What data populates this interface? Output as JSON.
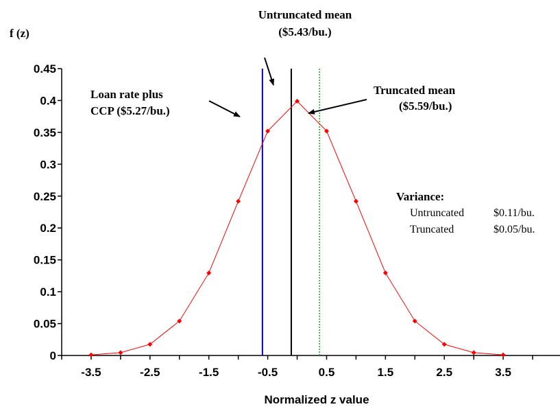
{
  "chart_data": {
    "type": "line",
    "xlabel": "Normalized z value",
    "ylabel": "f (z)",
    "ylim": [
      0,
      0.45
    ],
    "yticks": [
      "0",
      "0.05",
      "0.1",
      "0.15",
      "0.2",
      "0.25",
      "0.3",
      "0.35",
      "0.4",
      "0.45"
    ],
    "xticks": [
      "-3.5",
      "-2.5",
      "-1.5",
      "-0.5",
      "0.5",
      "1.5",
      "2.5",
      "3.5"
    ],
    "series": [
      {
        "color": "#ff0000",
        "x": [
          -3.5,
          -3.0,
          -2.5,
          -2.0,
          -1.5,
          -1.0,
          -0.5,
          0.0,
          0.5,
          1.0,
          1.5,
          2.0,
          2.5,
          3.0,
          3.5
        ],
        "y": [
          0.0009,
          0.0044,
          0.0175,
          0.054,
          0.1295,
          0.242,
          0.3521,
          0.3989,
          0.3521,
          0.242,
          0.1295,
          0.054,
          0.0175,
          0.0044,
          0.0009
        ]
      }
    ],
    "reference_lines": [
      {
        "x": -0.59,
        "color": "#0000cc",
        "style": "solid",
        "label": [
          "Loan rate plus",
          "CCP  ($5.27/bu.)"
        ]
      },
      {
        "x": -0.1,
        "color": "#000000",
        "style": "solid",
        "label": [
          "Untruncated mean",
          "($5.43/bu.)"
        ]
      },
      {
        "x": 0.38,
        "color": "#00bb00",
        "style": "dotted",
        "label": [
          "Truncated mean",
          "($5.59/bu.)"
        ]
      }
    ],
    "variance_note": {
      "title": "Variance:",
      "rows": [
        {
          "name": "Untruncated",
          "value": "$0.11/bu."
        },
        {
          "name": "Truncated",
          "value": "$0.05/bu."
        }
      ]
    }
  }
}
